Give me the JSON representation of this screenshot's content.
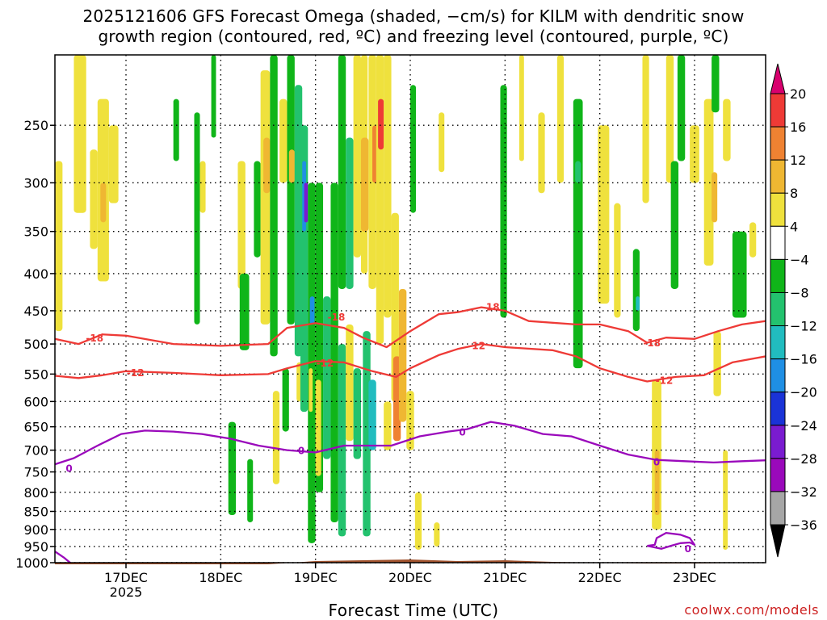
{
  "title_line1": "2025121606 GFS Forecast Omega (shaded, −cm/s) for KILM with dendritic snow",
  "title_line2": "growth region (contoured, red, ºC) and freezing level (contoured, purple, ºC)",
  "credit": "coolwx.com/models",
  "chart_data": {
    "type": "heatmap",
    "title": "2025121606 GFS Forecast Omega (shaded, −cm/s) for KILM with dendritic snow growth region (contoured, red, ºC) and freezing level (contoured, purple, ºC)",
    "xlabel": "Forecast Time (UTC)",
    "ylabel": "",
    "y_axis": {
      "scale": "log",
      "reversed": true,
      "range": [
        200,
        1000
      ],
      "ticks": [
        250,
        300,
        350,
        400,
        450,
        500,
        550,
        600,
        650,
        700,
        750,
        800,
        850,
        900,
        950,
        1000
      ]
    },
    "x_axis": {
      "range": [
        16.25,
        23.75
      ],
      "ticks": [
        {
          "value": 17,
          "label": "17DEC",
          "sublabel": "2025"
        },
        {
          "value": 18,
          "label": "18DEC"
        },
        {
          "value": 19,
          "label": "19DEC"
        },
        {
          "value": 20,
          "label": "20DEC"
        },
        {
          "value": 21,
          "label": "21DEC"
        },
        {
          "value": 22,
          "label": "22DEC"
        },
        {
          "value": 23,
          "label": "23DEC"
        }
      ]
    },
    "grid": true,
    "colorbar": {
      "labels": [
        "20",
        "16",
        "12",
        "8",
        "4",
        "−4",
        "−8",
        "−12",
        "−16",
        "−20",
        "−24",
        "−28",
        "−32",
        "−36"
      ],
      "colors": [
        "#d8006e",
        "#ee3a36",
        "#ef8232",
        "#efb732",
        "#efe13d",
        "#ffffff",
        "#10b519",
        "#23c26e",
        "#21bcbf",
        "#1f8fe4",
        "#1a33d7",
        "#7a1bd0",
        "#9a09bb",
        "#a6a6a6",
        "#000000"
      ]
    },
    "omega_cells": [
      {
        "t0": 16.25,
        "t1": 16.33,
        "p0": 280,
        "p1": 480,
        "value": 5
      },
      {
        "t0": 16.45,
        "t1": 16.58,
        "p0": 200,
        "p1": 330,
        "value": 5
      },
      {
        "t0": 16.62,
        "t1": 16.7,
        "p0": 270,
        "p1": 370,
        "value": 5
      },
      {
        "t0": 16.7,
        "t1": 16.82,
        "p0": 230,
        "p1": 410,
        "value": 6
      },
      {
        "t0": 16.73,
        "t1": 16.79,
        "p0": 300,
        "p1": 340,
        "value": 9
      },
      {
        "t0": 16.82,
        "t1": 16.92,
        "p0": 250,
        "p1": 320,
        "value": 5
      },
      {
        "t0": 17.5,
        "t1": 17.56,
        "p0": 230,
        "p1": 280,
        "value": -5
      },
      {
        "t0": 17.72,
        "t1": 17.78,
        "p0": 240,
        "p1": 470,
        "value": -6
      },
      {
        "t0": 17.78,
        "t1": 17.84,
        "p0": 280,
        "p1": 330,
        "value": 5
      },
      {
        "t0": 17.9,
        "t1": 17.95,
        "p0": 200,
        "p1": 260,
        "value": -5
      },
      {
        "t0": 18.08,
        "t1": 18.16,
        "p0": 640,
        "p1": 860,
        "value": -6
      },
      {
        "t0": 18.18,
        "t1": 18.26,
        "p0": 280,
        "p1": 420,
        "value": 5
      },
      {
        "t0": 18.2,
        "t1": 18.3,
        "p0": 400,
        "p1": 510,
        "value": -6
      },
      {
        "t0": 18.28,
        "t1": 18.34,
        "p0": 720,
        "p1": 880,
        "value": -6
      },
      {
        "t0": 18.35,
        "t1": 18.42,
        "p0": 280,
        "p1": 380,
        "value": -6
      },
      {
        "t0": 18.42,
        "t1": 18.52,
        "p0": 210,
        "p1": 470,
        "value": 5
      },
      {
        "t0": 18.45,
        "t1": 18.52,
        "p0": 260,
        "p1": 310,
        "value": 10
      },
      {
        "t0": 18.52,
        "t1": 18.6,
        "p0": 200,
        "p1": 520,
        "value": -6
      },
      {
        "t0": 18.55,
        "t1": 18.62,
        "p0": 580,
        "p1": 780,
        "value": 5
      },
      {
        "t0": 18.62,
        "t1": 18.7,
        "p0": 230,
        "p1": 300,
        "value": 5
      },
      {
        "t0": 18.65,
        "t1": 18.72,
        "p0": 540,
        "p1": 660,
        "value": -6
      },
      {
        "t0": 18.7,
        "t1": 18.78,
        "p0": 200,
        "p1": 470,
        "value": -7
      },
      {
        "t0": 18.72,
        "t1": 18.78,
        "p0": 270,
        "p1": 300,
        "value": 10
      },
      {
        "t0": 18.78,
        "t1": 18.86,
        "p0": 220,
        "p1": 520,
        "value": -8
      },
      {
        "t0": 18.8,
        "t1": 18.86,
        "p0": 530,
        "p1": 600,
        "value": 5
      },
      {
        "t0": 18.84,
        "t1": 18.92,
        "p0": 250,
        "p1": 620,
        "value": -8
      },
      {
        "t0": 18.86,
        "t1": 18.9,
        "p0": 280,
        "p1": 350,
        "value": -17
      },
      {
        "t0": 18.88,
        "t1": 18.92,
        "p0": 300,
        "p1": 340,
        "value": -26
      },
      {
        "t0": 18.92,
        "t1": 19.0,
        "p0": 300,
        "p1": 940,
        "value": -7
      },
      {
        "t0": 18.94,
        "t1": 18.99,
        "p0": 430,
        "p1": 470,
        "value": -17
      },
      {
        "t0": 18.93,
        "t1": 18.97,
        "p0": 540,
        "p1": 620,
        "value": 5
      },
      {
        "t0": 19.0,
        "t1": 19.08,
        "p0": 300,
        "p1": 800,
        "value": -7
      },
      {
        "t0": 19.0,
        "t1": 19.06,
        "p0": 560,
        "p1": 760,
        "value": 5
      },
      {
        "t0": 19.08,
        "t1": 19.16,
        "p0": 430,
        "p1": 720,
        "value": -10
      },
      {
        "t0": 19.16,
        "t1": 19.24,
        "p0": 300,
        "p1": 880,
        "value": -7
      },
      {
        "t0": 19.24,
        "t1": 19.32,
        "p0": 200,
        "p1": 420,
        "value": -7
      },
      {
        "t0": 19.24,
        "t1": 19.32,
        "p0": 500,
        "p1": 920,
        "value": -9
      },
      {
        "t0": 19.32,
        "t1": 19.4,
        "p0": 260,
        "p1": 420,
        "value": -10
      },
      {
        "t0": 19.32,
        "t1": 19.4,
        "p0": 470,
        "p1": 680,
        "value": 5
      },
      {
        "t0": 19.4,
        "t1": 19.48,
        "p0": 200,
        "p1": 380,
        "value": 5
      },
      {
        "t0": 19.4,
        "t1": 19.48,
        "p0": 540,
        "p1": 720,
        "value": -9
      },
      {
        "t0": 19.48,
        "t1": 19.55,
        "p0": 200,
        "p1": 400,
        "value": 5
      },
      {
        "t0": 19.48,
        "t1": 19.56,
        "p0": 260,
        "p1": 350,
        "value": 9
      },
      {
        "t0": 19.5,
        "t1": 19.58,
        "p0": 480,
        "p1": 920,
        "value": -8
      },
      {
        "t0": 19.56,
        "t1": 19.64,
        "p0": 560,
        "p1": 700,
        "value": -12
      },
      {
        "t0": 19.56,
        "t1": 19.64,
        "p0": 200,
        "p1": 420,
        "value": 6
      },
      {
        "t0": 19.6,
        "t1": 19.66,
        "p0": 250,
        "p1": 300,
        "value": 13
      },
      {
        "t0": 19.64,
        "t1": 19.72,
        "p0": 200,
        "p1": 500,
        "value": 7
      },
      {
        "t0": 19.66,
        "t1": 19.72,
        "p0": 230,
        "p1": 270,
        "value": 16
      },
      {
        "t0": 19.72,
        "t1": 19.8,
        "p0": 200,
        "p1": 460,
        "value": 6
      },
      {
        "t0": 19.72,
        "t1": 19.8,
        "p0": 600,
        "p1": 700,
        "value": 5
      },
      {
        "t0": 19.8,
        "t1": 19.88,
        "p0": 330,
        "p1": 600,
        "value": 7
      },
      {
        "t0": 19.82,
        "t1": 19.9,
        "p0": 520,
        "p1": 680,
        "value": 12
      },
      {
        "t0": 19.88,
        "t1": 19.96,
        "p0": 420,
        "p1": 640,
        "value": 8
      },
      {
        "t0": 19.96,
        "t1": 20.04,
        "p0": 580,
        "p1": 700,
        "value": 5
      },
      {
        "t0": 20.05,
        "t1": 20.12,
        "p0": 800,
        "p1": 960,
        "value": 5
      },
      {
        "t0": 20.25,
        "t1": 20.31,
        "p0": 880,
        "p1": 950,
        "value": 5
      },
      {
        "t0": 20.3,
        "t1": 20.36,
        "p0": 240,
        "p1": 290,
        "value": 5
      },
      {
        "t0": 20.0,
        "t1": 20.06,
        "p0": 220,
        "p1": 330,
        "value": -5
      },
      {
        "t0": 20.95,
        "t1": 21.02,
        "p0": 220,
        "p1": 460,
        "value": -5
      },
      {
        "t0": 21.15,
        "t1": 21.2,
        "p0": 200,
        "p1": 280,
        "value": 5
      },
      {
        "t0": 21.35,
        "t1": 21.42,
        "p0": 240,
        "p1": 310,
        "value": 5
      },
      {
        "t0": 21.55,
        "t1": 21.62,
        "p0": 200,
        "p1": 300,
        "value": 5
      },
      {
        "t0": 21.72,
        "t1": 21.82,
        "p0": 230,
        "p1": 540,
        "value": -7
      },
      {
        "t0": 21.74,
        "t1": 21.8,
        "p0": 280,
        "p1": 300,
        "value": -10
      },
      {
        "t0": 21.98,
        "t1": 22.1,
        "p0": 250,
        "p1": 440,
        "value": 5
      },
      {
        "t0": 22.15,
        "t1": 22.22,
        "p0": 320,
        "p1": 460,
        "value": 5
      },
      {
        "t0": 22.35,
        "t1": 22.42,
        "p0": 370,
        "p1": 480,
        "value": -6
      },
      {
        "t0": 22.38,
        "t1": 22.42,
        "p0": 430,
        "p1": 450,
        "value": -12
      },
      {
        "t0": 22.45,
        "t1": 22.52,
        "p0": 200,
        "p1": 320,
        "value": 5
      },
      {
        "t0": 22.55,
        "t1": 22.65,
        "p0": 560,
        "p1": 900,
        "value": 5
      },
      {
        "t0": 22.58,
        "t1": 22.63,
        "p0": 700,
        "p1": 860,
        "value": 10
      },
      {
        "t0": 22.7,
        "t1": 22.78,
        "p0": 200,
        "p1": 300,
        "value": 5
      },
      {
        "t0": 22.75,
        "t1": 22.83,
        "p0": 280,
        "p1": 420,
        "value": -6
      },
      {
        "t0": 22.82,
        "t1": 22.9,
        "p0": 200,
        "p1": 280,
        "value": -5
      },
      {
        "t0": 22.95,
        "t1": 23.05,
        "p0": 250,
        "p1": 300,
        "value": 5
      },
      {
        "t0": 23.1,
        "t1": 23.2,
        "p0": 230,
        "p1": 390,
        "value": 6
      },
      {
        "t0": 23.18,
        "t1": 23.24,
        "p0": 290,
        "p1": 340,
        "value": 9
      },
      {
        "t0": 23.18,
        "t1": 23.26,
        "p0": 200,
        "p1": 240,
        "value": -6
      },
      {
        "t0": 23.2,
        "t1": 23.28,
        "p0": 480,
        "p1": 590,
        "value": 5
      },
      {
        "t0": 23.3,
        "t1": 23.38,
        "p0": 230,
        "p1": 280,
        "value": 5
      },
      {
        "t0": 23.3,
        "t1": 23.35,
        "p0": 700,
        "p1": 960,
        "value": 5
      },
      {
        "t0": 23.4,
        "t1": 23.55,
        "p0": 350,
        "p1": 460,
        "value": -6
      },
      {
        "t0": 23.58,
        "t1": 23.65,
        "p0": 340,
        "p1": 380,
        "value": 5
      }
    ],
    "contours": [
      {
        "name": "-18",
        "color": "#ee3a36",
        "labels": [
          {
            "t": 16.67,
            "p": 490,
            "text": "-18"
          },
          {
            "t": 19.22,
            "p": 458,
            "text": "-18"
          },
          {
            "t": 20.85,
            "p": 444,
            "text": "-18"
          },
          {
            "t": 22.55,
            "p": 497,
            "text": "-18"
          }
        ],
        "points": [
          [
            16.25,
            492
          ],
          [
            16.5,
            500
          ],
          [
            16.75,
            485
          ],
          [
            17.0,
            487
          ],
          [
            17.5,
            500
          ],
          [
            18.0,
            503
          ],
          [
            18.5,
            500
          ],
          [
            18.7,
            475
          ],
          [
            19.0,
            468
          ],
          [
            19.3,
            475
          ],
          [
            19.5,
            490
          ],
          [
            19.75,
            505
          ],
          [
            20.0,
            480
          ],
          [
            20.3,
            455
          ],
          [
            20.5,
            452
          ],
          [
            20.75,
            445
          ],
          [
            21.0,
            450
          ],
          [
            21.25,
            465
          ],
          [
            21.75,
            470
          ],
          [
            22.0,
            470
          ],
          [
            22.3,
            480
          ],
          [
            22.5,
            498
          ],
          [
            22.7,
            490
          ],
          [
            23.0,
            492
          ],
          [
            23.25,
            480
          ],
          [
            23.5,
            470
          ],
          [
            23.75,
            465
          ]
        ]
      },
      {
        "name": "-12",
        "color": "#ee3a36",
        "labels": [
          {
            "t": 17.1,
            "p": 547,
            "text": "-12"
          },
          {
            "t": 19.1,
            "p": 530,
            "text": "-12"
          },
          {
            "t": 20.7,
            "p": 502,
            "text": "-12"
          },
          {
            "t": 22.68,
            "p": 560,
            "text": "-12"
          }
        ],
        "points": [
          [
            16.25,
            553
          ],
          [
            16.5,
            557
          ],
          [
            16.75,
            552
          ],
          [
            17.0,
            545
          ],
          [
            17.5,
            548
          ],
          [
            18.0,
            552
          ],
          [
            18.5,
            550
          ],
          [
            18.7,
            540
          ],
          [
            19.0,
            528
          ],
          [
            19.3,
            530
          ],
          [
            19.6,
            545
          ],
          [
            19.85,
            555
          ],
          [
            20.0,
            540
          ],
          [
            20.3,
            518
          ],
          [
            20.5,
            508
          ],
          [
            20.75,
            500
          ],
          [
            21.0,
            505
          ],
          [
            21.5,
            510
          ],
          [
            21.75,
            520
          ],
          [
            22.0,
            540
          ],
          [
            22.3,
            555
          ],
          [
            22.5,
            563
          ],
          [
            22.8,
            555
          ],
          [
            23.1,
            552
          ],
          [
            23.4,
            530
          ],
          [
            23.75,
            520
          ]
        ]
      },
      {
        "name": "0",
        "color": "#9a09bb",
        "labels": [
          {
            "t": 16.4,
            "p": 740,
            "text": "0"
          },
          {
            "t": 18.85,
            "p": 700,
            "text": "0"
          },
          {
            "t": 20.55,
            "p": 660,
            "text": "0"
          },
          {
            "t": 22.6,
            "p": 725,
            "text": "0"
          }
        ],
        "points": [
          [
            16.25,
            732
          ],
          [
            16.45,
            718
          ],
          [
            16.7,
            690
          ],
          [
            16.95,
            665
          ],
          [
            17.2,
            658
          ],
          [
            17.5,
            660
          ],
          [
            17.8,
            665
          ],
          [
            18.1,
            675
          ],
          [
            18.4,
            690
          ],
          [
            18.7,
            700
          ],
          [
            19.0,
            705
          ],
          [
            19.3,
            690
          ],
          [
            19.6,
            690
          ],
          [
            19.8,
            690
          ],
          [
            20.1,
            670
          ],
          [
            20.4,
            660
          ],
          [
            20.6,
            655
          ],
          [
            20.85,
            640
          ],
          [
            21.1,
            648
          ],
          [
            21.4,
            665
          ],
          [
            21.7,
            670
          ],
          [
            22.0,
            690
          ],
          [
            22.3,
            710
          ],
          [
            22.6,
            722
          ],
          [
            22.9,
            725
          ],
          [
            23.2,
            728
          ],
          [
            23.5,
            725
          ],
          [
            23.75,
            723
          ]
        ]
      },
      {
        "name": "0-lower",
        "color": "#9a09bb",
        "labels": [],
        "points": [
          [
            16.25,
            965
          ],
          [
            16.35,
            985
          ],
          [
            16.45,
            1010
          ],
          [
            16.5,
            1040
          ]
        ]
      },
      {
        "name": "0-closed",
        "color": "#9a09bb",
        "labels": [
          {
            "t": 22.93,
            "p": 955,
            "text": "0"
          }
        ],
        "points": [
          [
            22.5,
            948
          ],
          [
            22.65,
            957
          ],
          [
            22.75,
            948
          ],
          [
            22.85,
            940
          ],
          [
            22.95,
            938
          ],
          [
            23.0,
            945
          ],
          [
            22.95,
            925
          ],
          [
            22.85,
            915
          ],
          [
            22.7,
            910
          ],
          [
            22.6,
            925
          ],
          [
            22.58,
            945
          ],
          [
            22.5,
            948
          ]
        ]
      }
    ],
    "terrain_color": "#a0522d"
  }
}
